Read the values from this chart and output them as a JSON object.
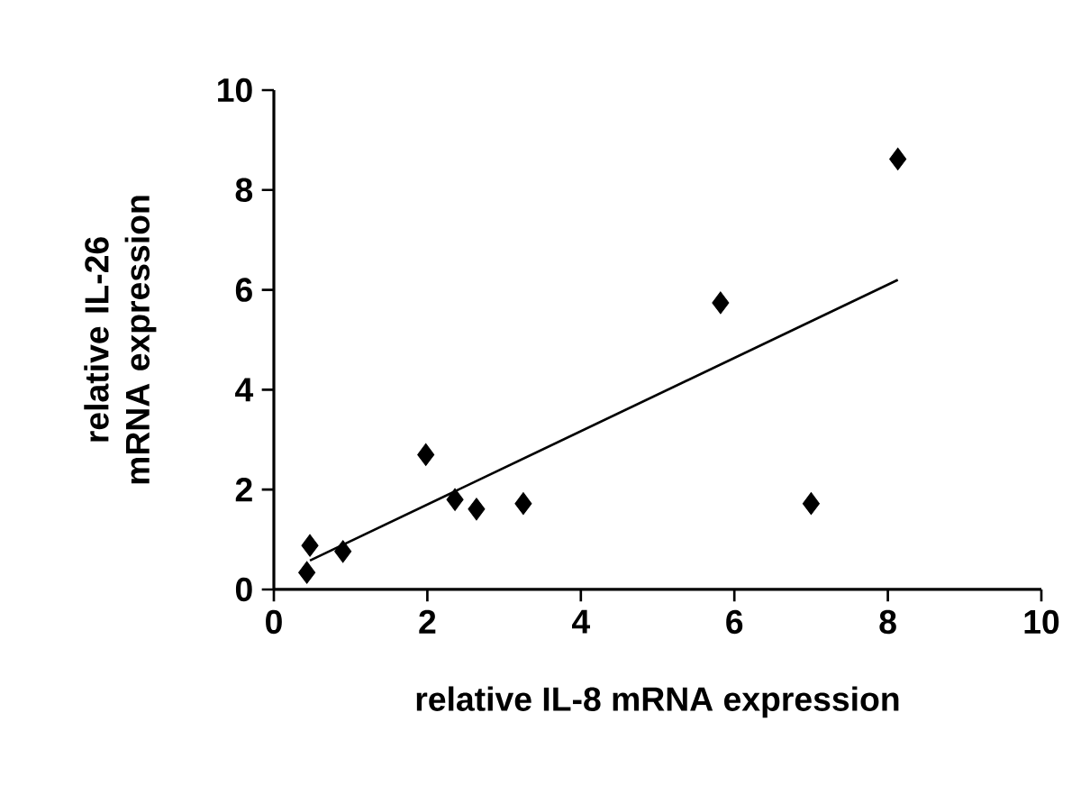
{
  "chart_data": {
    "type": "scatter",
    "xlabel": "relative IL-8 mRNA expression",
    "ylabel": "relative IL-26 mRNA expression",
    "xlim": [
      0,
      10
    ],
    "ylim": [
      0,
      10
    ],
    "xticks": [
      0,
      2,
      4,
      6,
      8,
      10
    ],
    "yticks": [
      0,
      2,
      4,
      6,
      8,
      10
    ],
    "series": [
      {
        "color": "#000000",
        "marker": "diamond",
        "x": [
          0.43,
          0.47,
          0.9,
          1.98,
          2.36,
          2.64,
          3.25,
          5.82,
          7.0,
          8.13
        ],
        "values": [
          0.34,
          0.88,
          0.76,
          2.7,
          1.8,
          1.61,
          1.72,
          5.74,
          1.72,
          8.62
        ]
      },
      {
        "type": "line",
        "color": "#000000",
        "marker": "none",
        "line_style": "solid",
        "x": [
          0.47,
          8.13
        ],
        "values": [
          0.58,
          6.2
        ]
      }
    ]
  }
}
